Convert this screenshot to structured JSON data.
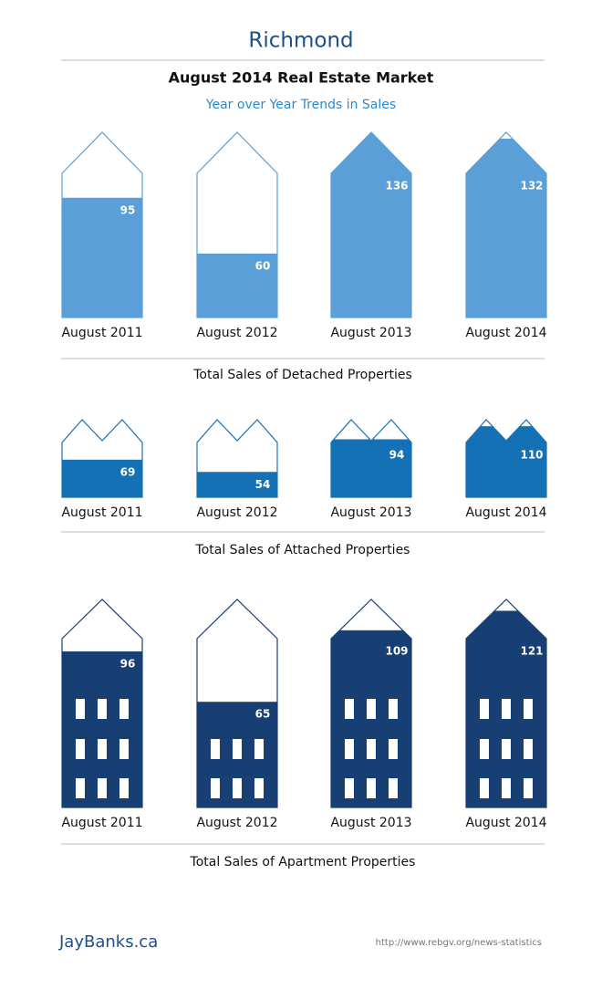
{
  "title": "Richmond",
  "subtitle": "August 2014 Real Estate Market",
  "tagline": "Year over Year Trends in Sales",
  "chart_data": [
    {
      "type": "house",
      "roof": "single",
      "windows": false,
      "title": "Total Sales of Detached Properties",
      "categories": [
        "August 2011",
        "August 2012",
        "August 2013",
        "August 2014"
      ],
      "values": [
        95,
        60,
        136,
        132
      ],
      "color": "#5a9fd8",
      "ylim": [
        20,
        136
      ]
    },
    {
      "type": "house",
      "roof": "double",
      "windows": false,
      "title": "Total Sales of Attached Properties",
      "categories": [
        "August 2011",
        "August 2012",
        "August 2013",
        "August 2014"
      ],
      "values": [
        69,
        54,
        94,
        110
      ],
      "color": "#1471b5",
      "ylim": [
        23,
        118
      ]
    },
    {
      "type": "house",
      "roof": "single",
      "windows": true,
      "title": "Total Sales of Apartment Properties",
      "categories": [
        "August 2011",
        "August 2012",
        "August 2013",
        "August 2014"
      ],
      "values": [
        96,
        65,
        109,
        121
      ],
      "color": "#173f73",
      "ylim": [
        0,
        128
      ]
    }
  ],
  "footer": {
    "brand": "JayBanks.ca",
    "source": "http://www.rebgv.org/news-statistics"
  }
}
